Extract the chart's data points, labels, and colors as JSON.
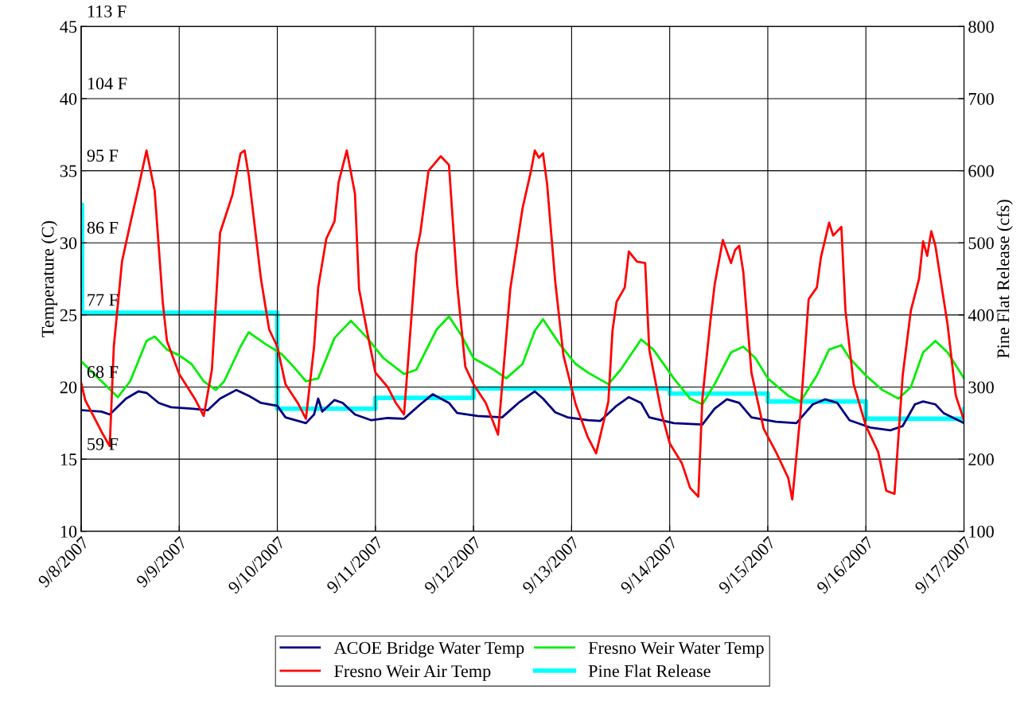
{
  "chart_data": {
    "type": "line",
    "xlabel": null,
    "ylabel": "Temperature (C)",
    "y2label": "Pine Flat Release (cfs)",
    "xlim": [
      "2007-09-08",
      "2007-09-17"
    ],
    "xticks": [
      {
        "value": "2007-09-08",
        "label": "9/8/2007"
      },
      {
        "value": "2007-09-09",
        "label": "9/9/2007"
      },
      {
        "value": "2007-09-10",
        "label": "9/10/2007"
      },
      {
        "value": "2007-09-11",
        "label": "9/11/2007"
      },
      {
        "value": "2007-09-12",
        "label": "9/12/2007"
      },
      {
        "value": "2007-09-13",
        "label": "9/13/2007"
      },
      {
        "value": "2007-09-14",
        "label": "9/14/2007"
      },
      {
        "value": "2007-09-15",
        "label": "9/15/2007"
      },
      {
        "value": "2007-09-16",
        "label": "9/16/2007"
      },
      {
        "value": "2007-09-17",
        "label": "9/17/2007"
      }
    ],
    "ylim": [
      10,
      45
    ],
    "yticks": [
      10,
      15,
      20,
      25,
      30,
      35,
      40,
      45
    ],
    "y2lim": [
      100,
      800
    ],
    "y2ticks": [
      100,
      200,
      300,
      400,
      500,
      600,
      700,
      800
    ],
    "grid": true,
    "legend": "bottom",
    "marker": "none",
    "line_style": "solid",
    "series": [
      {
        "name": "ACOE Bridge Water Temp",
        "color": "#000080",
        "x": [
          "2007-09-08T00:00",
          "2007-09-08T05:00",
          "2007-09-08T07:00",
          "2007-09-08T11:00",
          "2007-09-08T14:00",
          "2007-09-08T16:00",
          "2007-09-08T19:00",
          "2007-09-08T22:00",
          "2007-09-09T03:00",
          "2007-09-09T07:00",
          "2007-09-09T10:00",
          "2007-09-09T14:00",
          "2007-09-09T17:00",
          "2007-09-09T20:00",
          "2007-09-10T00:00",
          "2007-09-10T02:00",
          "2007-09-10T07:00",
          "2007-09-10T09:00",
          "2007-09-10T10:00",
          "2007-09-10T11:00",
          "2007-09-10T14:00",
          "2007-09-10T16:00",
          "2007-09-10T19:00",
          "2007-09-10T23:00",
          "2007-09-11T03:00",
          "2007-09-11T07:00",
          "2007-09-11T11:00",
          "2007-09-11T14:00",
          "2007-09-11T18:00",
          "2007-09-11T20:00",
          "2007-09-12T01:00",
          "2007-09-12T07:00",
          "2007-09-12T11:00",
          "2007-09-12T15:00",
          "2007-09-12T17:00",
          "2007-09-12T20:00",
          "2007-09-12T23:00",
          "2007-09-13T04:00",
          "2007-09-13T07:00",
          "2007-09-13T11:00",
          "2007-09-13T14:00",
          "2007-09-13T17:00",
          "2007-09-13T19:00",
          "2007-09-14T01:00",
          "2007-09-14T08:00",
          "2007-09-14T11:00",
          "2007-09-14T14:00",
          "2007-09-14T17:00",
          "2007-09-14T20:00",
          "2007-09-15T02:00",
          "2007-09-15T07:00",
          "2007-09-15T11:00",
          "2007-09-15T14:00",
          "2007-09-15T17:00",
          "2007-09-15T20:00",
          "2007-09-16T01:00",
          "2007-09-16T06:00",
          "2007-09-16T09:00",
          "2007-09-16T12:00",
          "2007-09-16T14:00",
          "2007-09-16T17:00",
          "2007-09-16T19:00",
          "2007-09-17T00:00"
        ],
        "values": [
          18.4,
          18.3,
          18.1,
          19.2,
          19.7,
          19.6,
          18.9,
          18.6,
          18.5,
          18.4,
          19.2,
          19.8,
          19.4,
          18.9,
          18.7,
          17.9,
          17.5,
          18.1,
          19.2,
          18.3,
          19.1,
          18.9,
          18.1,
          17.7,
          17.85,
          17.8,
          18.8,
          19.5,
          18.9,
          18.2,
          18.0,
          17.9,
          18.9,
          19.7,
          19.2,
          18.25,
          17.9,
          17.7,
          17.65,
          18.7,
          19.3,
          18.9,
          17.9,
          17.5,
          17.4,
          18.5,
          19.15,
          18.9,
          17.9,
          17.6,
          17.5,
          18.8,
          19.15,
          18.9,
          17.7,
          17.2,
          17.0,
          17.3,
          18.8,
          19.0,
          18.8,
          18.2,
          17.5
        ]
      },
      {
        "name": "Fresno Weir Water Temp",
        "color": "#00ee00",
        "x": [
          "2007-09-08T00:00",
          "2007-09-08T05:00",
          "2007-09-08T09:00",
          "2007-09-08T12:00",
          "2007-09-08T16:00",
          "2007-09-08T18:00",
          "2007-09-08T21:00",
          "2007-09-09T00:00",
          "2007-09-09T03:00",
          "2007-09-09T06:00",
          "2007-09-09T09:00",
          "2007-09-09T11:00",
          "2007-09-09T15:00",
          "2007-09-09T17:00",
          "2007-09-09T21:00",
          "2007-09-10T01:00",
          "2007-09-10T04:00",
          "2007-09-10T07:00",
          "2007-09-10T10:00",
          "2007-09-10T14:00",
          "2007-09-10T18:00",
          "2007-09-10T22:00",
          "2007-09-11T02:00",
          "2007-09-11T07:00",
          "2007-09-11T10:00",
          "2007-09-11T15:00",
          "2007-09-11T18:00",
          "2007-09-11T21:00",
          "2007-09-12T00:00",
          "2007-09-12T05:00",
          "2007-09-12T08:00",
          "2007-09-12T12:00",
          "2007-09-12T15:00",
          "2007-09-12T17:00",
          "2007-09-12T21:00",
          "2007-09-13T01:00",
          "2007-09-13T04:00",
          "2007-09-13T09:00",
          "2007-09-13T12:00",
          "2007-09-13T17:00",
          "2007-09-13T20:00",
          "2007-09-14T01:00",
          "2007-09-14T05:00",
          "2007-09-14T08:00",
          "2007-09-14T11:00",
          "2007-09-14T15:00",
          "2007-09-14T18:00",
          "2007-09-14T21:00",
          "2007-09-15T00:00",
          "2007-09-15T05:00",
          "2007-09-15T08:00",
          "2007-09-15T12:00",
          "2007-09-15T15:00",
          "2007-09-15T18:00",
          "2007-09-15T20:00",
          "2007-09-16T00:00",
          "2007-09-16T04:00",
          "2007-09-16T08:00",
          "2007-09-16T11:00",
          "2007-09-16T14:00",
          "2007-09-16T17:00",
          "2007-09-16T20:00",
          "2007-09-17T00:00"
        ],
        "values": [
          21.8,
          20.4,
          19.3,
          20.4,
          23.2,
          23.5,
          22.6,
          22.2,
          21.6,
          20.4,
          19.8,
          20.4,
          22.8,
          23.8,
          23.0,
          22.3,
          21.4,
          20.4,
          20.6,
          23.4,
          24.6,
          23.4,
          22.0,
          20.9,
          21.2,
          24.0,
          24.9,
          23.6,
          22.0,
          21.2,
          20.6,
          21.6,
          23.9,
          24.7,
          23.0,
          21.6,
          21.0,
          20.2,
          21.2,
          23.3,
          22.6,
          20.6,
          19.2,
          18.8,
          20.2,
          22.4,
          22.8,
          22.0,
          20.6,
          19.4,
          19.0,
          20.8,
          22.6,
          22.9,
          22.0,
          20.8,
          19.8,
          19.2,
          20.0,
          22.4,
          23.2,
          22.4,
          20.6
        ]
      },
      {
        "name": "Fresno Weir Air Temp",
        "color": "#ff0000",
        "x": [
          "2007-09-08T00:00",
          "2007-09-08T01:00",
          "2007-09-08T05:00",
          "2007-09-08T07:00",
          "2007-09-08T08:00",
          "2007-09-08T10:00",
          "2007-09-08T12:00",
          "2007-09-08T14:00",
          "2007-09-08T16:00",
          "2007-09-08T18:00",
          "2007-09-08T20:00",
          "2007-09-08T21:00",
          "2007-09-09T00:00",
          "2007-09-09T04:00",
          "2007-09-09T06:00",
          "2007-09-09T08:00",
          "2007-09-09T10:00",
          "2007-09-09T13:00",
          "2007-09-09T15:00",
          "2007-09-09T16:00",
          "2007-09-09T17:00",
          "2007-09-09T20:00",
          "2007-09-09T22:00",
          "2007-09-10T00:00",
          "2007-09-10T02:00",
          "2007-09-10T05:00",
          "2007-09-10T07:00",
          "2007-09-10T09:00",
          "2007-09-10T10:00",
          "2007-09-10T12:00",
          "2007-09-10T14:00",
          "2007-09-10T15:00",
          "2007-09-10T17:00",
          "2007-09-10T19:00",
          "2007-09-10T20:00",
          "2007-09-10T22:00",
          "2007-09-11T00:00",
          "2007-09-11T03:00",
          "2007-09-11T05:00",
          "2007-09-11T07:00",
          "2007-09-11T08:00",
          "2007-09-11T10:00",
          "2007-09-11T11:00",
          "2007-09-11T13:00",
          "2007-09-11T16:00",
          "2007-09-11T18:00",
          "2007-09-11T20:00",
          "2007-09-11T22:00",
          "2007-09-12T00:00",
          "2007-09-12T03:00",
          "2007-09-12T06:00",
          "2007-09-12T09:00",
          "2007-09-12T12:00",
          "2007-09-12T14:00",
          "2007-09-12T15:00",
          "2007-09-12T16:00",
          "2007-09-12T17:00",
          "2007-09-12T18:00",
          "2007-09-12T20:00",
          "2007-09-12T22:00",
          "2007-09-13T01:00",
          "2007-09-13T04:00",
          "2007-09-13T06:00",
          "2007-09-13T09:00",
          "2007-09-13T10:00",
          "2007-09-13T11:00",
          "2007-09-13T13:00",
          "2007-09-13T14:00",
          "2007-09-13T16:00",
          "2007-09-13T18:00",
          "2007-09-13T19:00",
          "2007-09-13T22:00",
          "2007-09-14T00:00",
          "2007-09-14T03:00",
          "2007-09-14T05:00",
          "2007-09-14T07:00",
          "2007-09-14T08:00",
          "2007-09-14T10:00",
          "2007-09-14T11:00",
          "2007-09-14T13:00",
          "2007-09-14T15:00",
          "2007-09-14T16:00",
          "2007-09-14T17:00",
          "2007-09-14T18:00",
          "2007-09-14T20:00",
          "2007-09-14T23:00",
          "2007-09-15T02:00",
          "2007-09-15T05:00",
          "2007-09-15T06:00",
          "2007-09-15T08:00",
          "2007-09-15T10:00",
          "2007-09-15T12:00",
          "2007-09-15T13:00",
          "2007-09-15T15:00",
          "2007-09-15T16:00",
          "2007-09-15T18:00",
          "2007-09-15T19:00",
          "2007-09-15T21:00",
          "2007-09-16T00:00",
          "2007-09-16T03:00",
          "2007-09-16T05:00",
          "2007-09-16T07:00",
          "2007-09-16T09:00",
          "2007-09-16T11:00",
          "2007-09-16T13:00",
          "2007-09-16T14:00",
          "2007-09-16T15:00",
          "2007-09-16T16:00",
          "2007-09-16T17:00",
          "2007-09-16T20:00",
          "2007-09-16T22:00",
          "2007-09-17T00:00"
        ],
        "values": [
          20.3,
          19.1,
          16.9,
          15.9,
          22.8,
          28.7,
          31.3,
          33.8,
          36.4,
          33.6,
          25.8,
          23.2,
          20.9,
          19.1,
          18.0,
          21.2,
          30.7,
          33.3,
          36.2,
          36.4,
          34.7,
          27.5,
          24.0,
          22.8,
          20.2,
          18.9,
          17.8,
          22.8,
          26.9,
          30.3,
          31.5,
          34.2,
          36.4,
          33.4,
          26.8,
          23.8,
          21.0,
          20.0,
          18.9,
          18.1,
          21.8,
          29.3,
          30.7,
          35.0,
          36.0,
          35.4,
          27.1,
          21.4,
          20.2,
          18.9,
          16.7,
          26.8,
          32.4,
          34.9,
          36.4,
          35.9,
          36.2,
          34.1,
          27.3,
          22.2,
          18.8,
          16.5,
          15.4,
          19.0,
          23.9,
          25.9,
          26.9,
          29.4,
          28.7,
          28.6,
          22.6,
          18.2,
          16.1,
          14.7,
          13.0,
          12.4,
          19.2,
          24.7,
          27.1,
          30.2,
          28.6,
          29.5,
          29.8,
          28.0,
          21.0,
          17.1,
          15.5,
          13.7,
          12.2,
          18.2,
          26.1,
          26.9,
          29.0,
          31.4,
          30.5,
          31.1,
          25.3,
          20.2,
          17.3,
          15.5,
          12.8,
          12.6,
          20.8,
          25.3,
          27.5,
          30.1,
          29.1,
          30.8,
          29.8,
          24.3,
          19.4,
          17.7
        ]
      },
      {
        "name": "Pine Flat Release",
        "color": "#00ffff",
        "type": "step",
        "axis": "y2",
        "x": [
          "2007-09-08T00:00",
          "2007-09-08T00:15",
          "2007-09-10T00:00",
          "2007-09-11T00:00",
          "2007-09-12T00:00",
          "2007-09-14T00:00",
          "2007-09-15T00:00",
          "2007-09-16T00:00",
          "2007-09-17T00:00"
        ],
        "values": [
          553,
          403,
          270,
          285,
          298,
          291,
          280,
          256,
          269
        ]
      }
    ],
    "annotations": [
      "113 F",
      "104 F",
      "95 F",
      "86 F",
      "77 F",
      "68 F",
      "59 F"
    ]
  }
}
